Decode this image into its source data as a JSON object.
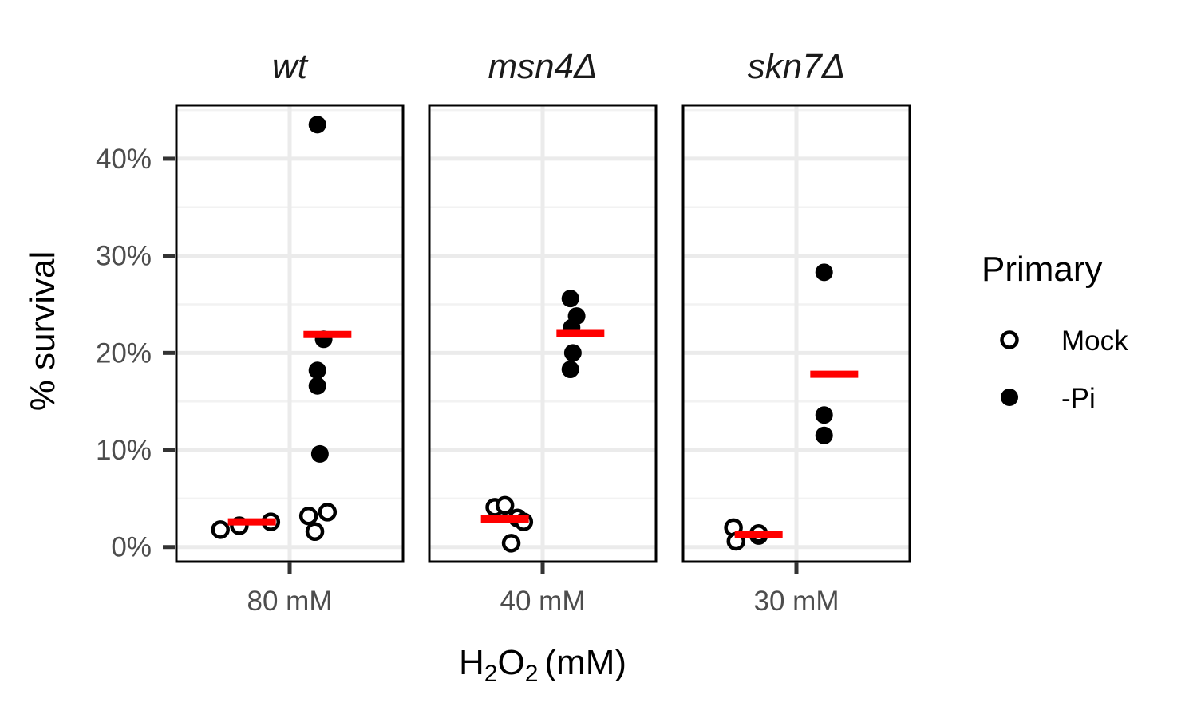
{
  "chart_data": {
    "type": "scatter",
    "ylabel": "% survival",
    "xlabel": {
      "base": "H",
      "sub1": "2",
      "mid": "O",
      "sub2": "2",
      "rest": "(mM)"
    },
    "y_ticks": [
      "0%",
      "10%",
      "20%",
      "30%",
      "40%"
    ],
    "ylim": [
      -1.5,
      45.5
    ],
    "grid": true,
    "legend": {
      "title": "Primary",
      "position": "right",
      "entries": [
        {
          "label": "Mock",
          "marker": "open-circle"
        },
        {
          "label": "-Pi",
          "marker": "filled-circle"
        }
      ]
    },
    "mean_color": "#ff0000",
    "panels": [
      {
        "strain": "wt",
        "x_tick": "80 mM",
        "series": [
          {
            "name": "Mock",
            "values": [
              1.8,
              2.2,
              2.6,
              3.2,
              3.6,
              1.6
            ],
            "jitter": [
              -0.55,
              -0.4,
              -0.15,
              0.15,
              0.3,
              0.2
            ],
            "mean": 2.6
          },
          {
            "name": "-Pi",
            "values": [
              43.5,
              21.4,
              18.2,
              16.6,
              9.6
            ],
            "jitter": [
              0.22,
              0.27,
              0.22,
              0.22,
              0.24
            ],
            "mean": 21.9
          }
        ]
      },
      {
        "strain": "msn4Δ",
        "x_tick": "40 mM",
        "series": [
          {
            "name": "Mock",
            "values": [
              4.1,
              4.3,
              3.0,
              2.6,
              0.4
            ],
            "jitter": [
              -0.38,
              -0.3,
              -0.2,
              -0.15,
              -0.25
            ],
            "mean": 2.9
          },
          {
            "name": "-Pi",
            "values": [
              25.6,
              23.8,
              22.6,
              20.0,
              18.3
            ],
            "jitter": [
              0.22,
              0.27,
              0.23,
              0.24,
              0.22
            ],
            "mean": 22.0
          }
        ]
      },
      {
        "strain": "skn7Δ",
        "x_tick": "30 mM",
        "series": [
          {
            "name": "Mock",
            "values": [
              2.0,
              1.2,
              0.6,
              1.4
            ],
            "jitter": [
              -0.5,
              -0.3,
              -0.48,
              -0.3
            ],
            "mean": 1.3
          },
          {
            "name": "-Pi",
            "values": [
              28.3,
              13.6,
              11.5
            ],
            "jitter": [
              0.22,
              0.22,
              0.22
            ],
            "mean": 17.8
          }
        ]
      }
    ]
  }
}
